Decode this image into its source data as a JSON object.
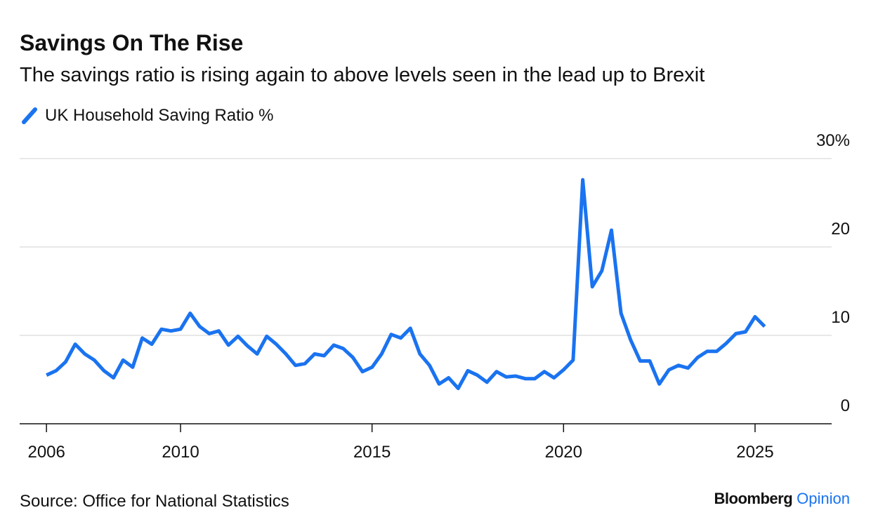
{
  "chart_data": {
    "type": "line",
    "title": "Savings On The Rise",
    "subtitle": "The savings ratio is rising again to above levels seen in the lead up to Brexit",
    "source": "Source: Office for National Statistics",
    "brand": "Bloomberg",
    "brand_suffix": "Opinion",
    "x": [
      2006.5,
      2006.75,
      2007,
      2007.25,
      2007.5,
      2007.75,
      2008,
      2008.25,
      2008.5,
      2008.75,
      2009,
      2009.25,
      2009.5,
      2009.75,
      2010,
      2010.25,
      2010.5,
      2010.75,
      2011,
      2011.25,
      2011.5,
      2011.75,
      2012,
      2012.25,
      2012.5,
      2012.75,
      2013,
      2013.25,
      2013.5,
      2013.75,
      2014,
      2014.25,
      2014.5,
      2014.75,
      2015,
      2015.25,
      2015.5,
      2015.75,
      2016,
      2016.25,
      2016.5,
      2016.75,
      2017,
      2017.25,
      2017.5,
      2017.75,
      2018,
      2018.25,
      2018.5,
      2018.75,
      2019,
      2019.25,
      2019.5,
      2019.75,
      2020,
      2020.25,
      2020.5,
      2020.75,
      2021,
      2021.25,
      2021.5,
      2021.75,
      2022,
      2022.25,
      2022.5,
      2022.75,
      2023,
      2023.25,
      2023.5,
      2023.75,
      2024,
      2024.25,
      2024.5,
      2024.75,
      2025,
      2025.25
    ],
    "series": [
      {
        "name": "UK Household Saving Ratio %",
        "color": "#1a73f0",
        "values": [
          5.5,
          6.0,
          7.0,
          9.0,
          7.9,
          7.2,
          6.0,
          5.2,
          7.2,
          6.4,
          9.7,
          9.0,
          10.7,
          10.5,
          10.7,
          12.5,
          11.0,
          10.2,
          10.5,
          8.9,
          9.9,
          8.8,
          7.9,
          9.9,
          9.0,
          7.9,
          6.6,
          6.8,
          7.9,
          7.7,
          8.9,
          8.5,
          7.5,
          5.9,
          6.4,
          7.9,
          10.1,
          9.7,
          10.8,
          7.9,
          6.6,
          4.5,
          5.2,
          4.0,
          6.0,
          5.5,
          4.7,
          5.9,
          5.3,
          5.4,
          5.1,
          5.1,
          5.9,
          5.2,
          6.1,
          7.2,
          27.6,
          15.5,
          17.3,
          21.9,
          12.5,
          9.5,
          7.1,
          7.1,
          4.5,
          6.1,
          6.6,
          6.3,
          7.5,
          8.2,
          8.2,
          9.1,
          10.2,
          10.4,
          12.1,
          11.0
        ]
      }
    ],
    "xlim": [
      2005.8,
      2027
    ],
    "xticks": [
      {
        "value": 2006.5,
        "label": "2006"
      },
      2010,
      2015,
      2020,
      2025
    ],
    "ylim": [
      0,
      30
    ],
    "yticks": [
      0,
      10,
      20,
      {
        "value": 30,
        "label": "30%"
      }
    ],
    "grid": true
  }
}
